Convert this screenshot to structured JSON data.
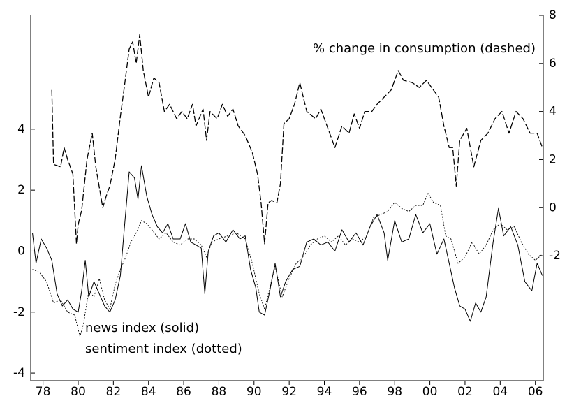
{
  "chart_data": {
    "type": "line",
    "xlim": [
      1977.3,
      2006.45
    ],
    "xticks": [
      {
        "value": 1978,
        "label": "78"
      },
      {
        "value": 1980,
        "label": "80"
      },
      {
        "value": 1982,
        "label": "82"
      },
      {
        "value": 1984,
        "label": "84"
      },
      {
        "value": 1986,
        "label": "86"
      },
      {
        "value": 1988,
        "label": "88"
      },
      {
        "value": 1990,
        "label": "90"
      },
      {
        "value": 1992,
        "label": "92"
      },
      {
        "value": 1994,
        "label": "94"
      },
      {
        "value": 1996,
        "label": "96"
      },
      {
        "value": 1998,
        "label": "98"
      },
      {
        "value": 2000,
        "label": "00"
      },
      {
        "value": 2002,
        "label": "02"
      },
      {
        "value": 2004,
        "label": "04"
      },
      {
        "value": 2006,
        "label": "06"
      }
    ],
    "ylim": [
      -4.25,
      7.73
    ],
    "yticks": [
      -4,
      -2,
      0,
      2,
      4
    ],
    "y2lim": [
      -7.2,
      8
    ],
    "y2ticks": [
      -2,
      0,
      2,
      4,
      6,
      8
    ],
    "series": [
      {
        "name": "% change in consumption (dashed)",
        "axis": "y2",
        "color": "#000000",
        "style": "dashed",
        "x": [
          1978.5,
          1978.6,
          1979.0,
          1979.2,
          1979.4,
          1979.7,
          1979.9,
          1980.0,
          1980.2,
          1980.5,
          1980.8,
          1981.0,
          1981.4,
          1981.6,
          1981.8,
          1982.1,
          1982.4,
          1982.6,
          1982.9,
          1983.1,
          1983.3,
          1983.5,
          1983.7,
          1984.0,
          1984.3,
          1984.6,
          1984.9,
          1985.2,
          1985.6,
          1985.9,
          1986.2,
          1986.5,
          1986.7,
          1987.1,
          1987.3,
          1987.5,
          1987.9,
          1988.2,
          1988.5,
          1988.8,
          1989.1,
          1989.5,
          1989.9,
          1990.2,
          1990.4,
          1990.6,
          1990.8,
          1991.0,
          1991.3,
          1991.5,
          1991.7,
          1992.0,
          1992.3,
          1992.6,
          1993.0,
          1993.5,
          1993.8,
          1994.3,
          1994.6,
          1995.0,
          1995.4,
          1995.7,
          1996.0,
          1996.3,
          1996.7,
          1997.0,
          1997.4,
          1997.8,
          1998.2,
          1998.5,
          1999.0,
          1999.4,
          1999.8,
          2000.2,
          2000.5,
          2000.8,
          2001.1,
          2001.3,
          2001.5,
          2001.7,
          2002.1,
          2002.5,
          2002.9,
          2003.3,
          2003.7,
          2004.1,
          2004.5,
          2004.9,
          2005.3,
          2005.7,
          2006.1,
          2006.4
        ],
        "values": [
          4.9,
          1.8,
          1.7,
          2.5,
          2.0,
          1.4,
          -1.5,
          -0.7,
          -0.1,
          2.0,
          3.1,
          1.7,
          0.0,
          0.5,
          0.9,
          2.0,
          3.8,
          4.9,
          6.6,
          6.9,
          6.0,
          7.2,
          5.7,
          4.6,
          5.4,
          5.2,
          4.0,
          4.3,
          3.7,
          4.0,
          3.7,
          4.3,
          3.4,
          4.1,
          2.8,
          4.0,
          3.7,
          4.3,
          3.8,
          4.1,
          3.4,
          3.0,
          2.3,
          1.4,
          0.2,
          -1.5,
          0.2,
          0.3,
          0.2,
          1.0,
          3.5,
          3.7,
          4.3,
          5.2,
          4.0,
          3.7,
          4.1,
          3.1,
          2.5,
          3.4,
          3.1,
          3.9,
          3.3,
          4.0,
          4.0,
          4.3,
          4.6,
          4.9,
          5.7,
          5.3,
          5.2,
          5.0,
          5.3,
          4.9,
          4.6,
          3.4,
          2.5,
          2.5,
          0.9,
          2.8,
          3.3,
          1.7,
          2.8,
          3.1,
          3.7,
          4.0,
          3.1,
          4.0,
          3.7,
          3.1,
          3.1,
          2.5
        ]
      },
      {
        "name": "news index (solid)",
        "axis": "y",
        "color": "#000000",
        "style": "solid",
        "x": [
          1977.4,
          1977.6,
          1977.9,
          1978.2,
          1978.5,
          1978.8,
          1979.1,
          1979.4,
          1979.7,
          1980.0,
          1980.2,
          1980.4,
          1980.6,
          1980.9,
          1981.2,
          1981.5,
          1981.8,
          1982.1,
          1982.4,
          1982.6,
          1982.9,
          1983.2,
          1983.4,
          1983.6,
          1983.9,
          1984.2,
          1984.5,
          1984.8,
          1985.1,
          1985.4,
          1985.8,
          1986.1,
          1986.4,
          1986.7,
          1987.0,
          1987.2,
          1987.4,
          1987.7,
          1988.0,
          1988.4,
          1988.8,
          1989.2,
          1989.5,
          1989.8,
          1990.1,
          1990.3,
          1990.6,
          1990.9,
          1991.2,
          1991.5,
          1991.8,
          1992.2,
          1992.6,
          1993.0,
          1993.4,
          1993.8,
          1994.2,
          1994.6,
          1995.0,
          1995.4,
          1995.8,
          1996.2,
          1996.6,
          1997.0,
          1997.4,
          1997.6,
          1998.0,
          1998.4,
          1998.8,
          1999.2,
          1999.6,
          2000.0,
          2000.4,
          2000.8,
          2001.1,
          2001.4,
          2001.7,
          2002.0,
          2002.3,
          2002.6,
          2002.9,
          2003.2,
          2003.6,
          2003.9,
          2004.2,
          2004.6,
          2005.0,
          2005.4,
          2005.8,
          2006.1,
          2006.4
        ],
        "values": [
          0.6,
          -0.4,
          0.4,
          0.1,
          -0.3,
          -1.4,
          -1.8,
          -1.6,
          -1.9,
          -2.0,
          -1.3,
          -0.3,
          -1.5,
          -1.0,
          -1.4,
          -1.8,
          -2.0,
          -1.6,
          -0.8,
          0.6,
          2.6,
          2.4,
          1.7,
          2.8,
          1.8,
          1.2,
          0.8,
          0.6,
          0.9,
          0.4,
          0.4,
          0.9,
          0.3,
          0.2,
          0.1,
          -1.4,
          0.0,
          0.5,
          0.6,
          0.3,
          0.7,
          0.4,
          0.5,
          -0.6,
          -1.2,
          -2.0,
          -2.1,
          -1.3,
          -0.4,
          -1.5,
          -1.0,
          -0.6,
          -0.5,
          0.3,
          0.4,
          0.2,
          0.3,
          0.0,
          0.7,
          0.3,
          0.6,
          0.2,
          0.8,
          1.2,
          0.6,
          -0.3,
          1.0,
          0.3,
          0.4,
          1.2,
          0.6,
          0.9,
          -0.1,
          0.4,
          -0.4,
          -1.2,
          -1.8,
          -1.9,
          -2.3,
          -1.7,
          -2.0,
          -1.5,
          0.3,
          1.4,
          0.5,
          0.8,
          0.2,
          -1.0,
          -1.3,
          -0.4,
          -0.8
        ]
      },
      {
        "name": "sentiment index (dotted)",
        "axis": "y",
        "color": "#000000",
        "style": "dotted",
        "x": [
          1977.4,
          1977.8,
          1978.2,
          1978.6,
          1979.0,
          1979.4,
          1979.8,
          1980.1,
          1980.3,
          1980.6,
          1980.9,
          1981.2,
          1981.5,
          1981.8,
          1982.1,
          1982.4,
          1982.7,
          1983.0,
          1983.3,
          1983.6,
          1983.9,
          1984.2,
          1984.6,
          1985.0,
          1985.4,
          1985.8,
          1986.2,
          1986.6,
          1987.0,
          1987.3,
          1987.6,
          1988.0,
          1988.5,
          1989.0,
          1989.5,
          1989.9,
          1990.3,
          1990.6,
          1990.9,
          1991.2,
          1991.6,
          1992.0,
          1992.4,
          1992.8,
          1993.2,
          1993.6,
          1994.0,
          1994.4,
          1994.8,
          1995.2,
          1995.6,
          1996.0,
          1996.4,
          1996.8,
          1997.2,
          1997.6,
          1998.0,
          1998.4,
          1998.8,
          1999.2,
          1999.6,
          1999.9,
          2000.2,
          2000.6,
          2000.9,
          2001.2,
          2001.6,
          2002.0,
          2002.4,
          2002.8,
          2003.2,
          2003.6,
          2004.0,
          2004.4,
          2004.8,
          2005.2,
          2005.6,
          2006.0,
          2006.4
        ],
        "values": [
          -0.6,
          -0.7,
          -1.0,
          -1.7,
          -1.6,
          -2.0,
          -2.1,
          -2.8,
          -2.4,
          -1.3,
          -1.5,
          -0.9,
          -1.6,
          -1.9,
          -1.1,
          -0.6,
          -0.2,
          0.3,
          0.6,
          1.0,
          0.9,
          0.7,
          0.4,
          0.6,
          0.3,
          0.2,
          0.4,
          0.4,
          0.2,
          -0.2,
          0.3,
          0.4,
          0.5,
          0.6,
          0.4,
          -0.4,
          -1.4,
          -1.9,
          -1.2,
          -0.5,
          -1.5,
          -0.9,
          -0.4,
          -0.2,
          0.2,
          0.4,
          0.5,
          0.3,
          0.5,
          0.2,
          0.4,
          0.3,
          0.5,
          1.1,
          1.2,
          1.3,
          1.6,
          1.4,
          1.3,
          1.5,
          1.5,
          1.9,
          1.6,
          1.5,
          0.5,
          0.4,
          -0.4,
          -0.2,
          0.3,
          -0.1,
          0.2,
          0.7,
          0.9,
          0.7,
          0.8,
          0.3,
          -0.1,
          -0.3,
          -0.1
        ]
      }
    ]
  }
}
